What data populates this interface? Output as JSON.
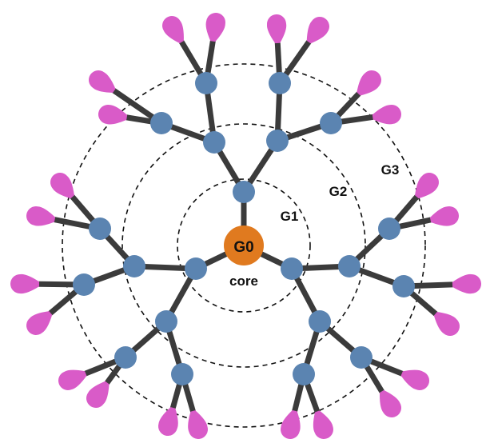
{
  "diagram": {
    "type": "dendrimer-generations",
    "core": {
      "label": "G0",
      "caption": "core",
      "color": "#e07a1f"
    },
    "generation_labels": [
      "G1",
      "G2",
      "G3"
    ],
    "colors": {
      "branch_node": "#5b84b1",
      "bond": "#3b3b3b",
      "end_group": "#d95bc8",
      "ring": "#111111"
    },
    "structure": {
      "core_branches": 3,
      "branching_factor": 2,
      "generations": 3,
      "end_groups_per_terminal": 2
    }
  }
}
